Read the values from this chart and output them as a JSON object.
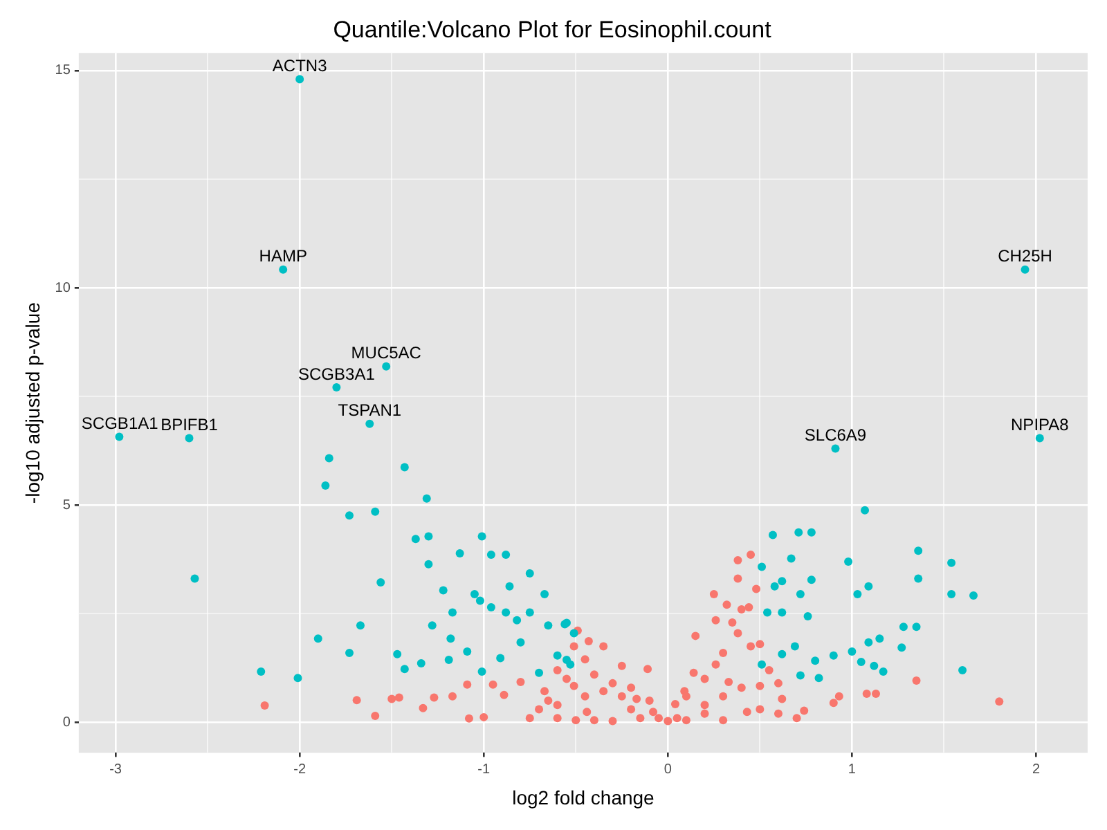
{
  "chart_data": {
    "type": "scatter",
    "title": "Quantile:Volcano Plot for Eosinophil.count",
    "xlabel": "log2 fold change",
    "ylabel": "-log10 adjusted p-value",
    "xlim": [
      -3.2,
      2.28
    ],
    "ylim": [
      -0.7,
      15.4
    ],
    "xticks": [
      -3,
      {
        "value": -2.5,
        "label": null
      },
      -2,
      {
        "value": -1.5,
        "label": null
      },
      -1,
      {
        "value": -0.5,
        "label": null
      },
      0,
      {
        "value": 0.5,
        "label": null
      },
      1,
      {
        "value": 1.5,
        "label": null
      },
      2
    ],
    "yticks": [
      0,
      {
        "value": 2.5,
        "label": null
      },
      5,
      {
        "value": 7.5,
        "label": null
      },
      10,
      {
        "value": 12.5,
        "label": null
      },
      15
    ],
    "grid": true,
    "legend": false,
    "marker": "circle",
    "series": [
      {
        "color": "#00bfc4",
        "x": [
          -2.0,
          -2.09,
          1.94,
          -1.53,
          -1.8,
          -1.62,
          -2.98,
          -2.6,
          0.91,
          2.02,
          -1.84,
          -1.43,
          -1.86,
          -1.31,
          -1.73,
          -1.59,
          -1.37,
          -1.3,
          -1.01,
          -1.13,
          -1.3,
          -2.57,
          -1.56,
          -0.96,
          -0.88,
          -0.75,
          -1.67,
          -1.9,
          -1.73,
          -1.47,
          -1.43,
          -1.34,
          -2.21,
          -2.01,
          -1.22,
          -1.17,
          -1.28,
          -1.18,
          -1.19,
          -1.05,
          -1.02,
          -0.96,
          -0.88,
          -0.86,
          -0.82,
          -0.75,
          -0.67,
          -0.65,
          -0.8,
          -0.6,
          -0.55,
          -0.91,
          -1.01,
          -0.7,
          -0.53,
          -1.09,
          -0.56,
          -0.51,
          -0.55,
          1.07,
          0.57,
          0.71,
          0.78,
          0.67,
          0.51,
          0.98,
          1.36,
          1.54,
          1.36,
          1.54,
          1.66,
          1.03,
          1.09,
          0.78,
          0.62,
          0.72,
          0.58,
          0.54,
          0.62,
          0.76,
          1.28,
          1.35,
          1.15,
          1.09,
          1.27,
          1.0,
          0.69,
          0.62,
          0.8,
          0.9,
          1.05,
          1.12,
          1.17,
          1.6,
          0.72,
          0.82,
          0.51
        ],
        "values": [
          14.8,
          10.42,
          10.42,
          8.19,
          7.71,
          6.87,
          6.57,
          6.54,
          6.3,
          6.54,
          6.08,
          5.87,
          5.45,
          5.15,
          4.76,
          4.85,
          4.22,
          4.28,
          4.28,
          3.89,
          3.64,
          3.31,
          3.22,
          3.86,
          3.86,
          3.43,
          2.23,
          1.93,
          1.6,
          1.57,
          1.23,
          1.36,
          1.17,
          1.02,
          3.04,
          2.53,
          2.23,
          1.93,
          1.44,
          2.95,
          2.8,
          2.65,
          2.53,
          3.13,
          2.35,
          2.53,
          2.95,
          2.23,
          1.84,
          1.54,
          2.29,
          1.48,
          1.17,
          1.14,
          1.33,
          1.63,
          2.26,
          2.05,
          1.44,
          4.88,
          4.31,
          4.37,
          4.37,
          3.77,
          3.58,
          3.7,
          3.95,
          3.67,
          3.31,
          2.95,
          2.92,
          2.95,
          3.13,
          3.28,
          3.25,
          2.95,
          3.13,
          2.53,
          2.53,
          2.44,
          2.2,
          2.2,
          1.93,
          1.84,
          1.72,
          1.63,
          1.75,
          1.57,
          1.42,
          1.54,
          1.39,
          1.3,
          1.17,
          1.2,
          1.08,
          1.02,
          1.33
        ]
      },
      {
        "color": "#f8766d",
        "x": [
          -2.19,
          -1.69,
          -1.59,
          -1.5,
          -1.46,
          -1.33,
          -1.27,
          -1.17,
          -1.09,
          -1.08,
          -1.0,
          -0.95,
          -0.89,
          -0.8,
          -0.67,
          1.35,
          1.8,
          1.08,
          1.13,
          0.9,
          0.93,
          0.45,
          0.38,
          0.38,
          0.48,
          0.25,
          0.32,
          0.44,
          0.15,
          0.26,
          0.38,
          0.45,
          0.14,
          0.26,
          0.33,
          0.5,
          0.62,
          0.74,
          0.04,
          0.09,
          0.0,
          0.43,
          -0.49,
          -0.43,
          -0.35,
          -0.25,
          -0.11,
          -0.51,
          -0.35,
          -0.17,
          -0.08,
          -0.44,
          -0.3,
          -0.51,
          -0.6,
          -0.55,
          -0.45,
          -0.4,
          -0.3,
          -0.2,
          -0.65,
          -0.7,
          -0.6,
          -0.5,
          -0.4,
          -0.2,
          -0.1,
          -0.05,
          0.05,
          0.1,
          0.2,
          0.3,
          0.35,
          0.4,
          0.5,
          0.55,
          0.6,
          0.2,
          0.3,
          0.1,
          0.2,
          0.3,
          0.4,
          0.5,
          0.6,
          0.7,
          -0.75,
          -0.6,
          -0.45,
          -0.25,
          -0.15
        ],
        "values": [
          0.39,
          0.51,
          0.15,
          0.54,
          0.57,
          0.33,
          0.57,
          0.6,
          0.87,
          0.09,
          0.12,
          0.87,
          0.63,
          0.93,
          0.72,
          0.96,
          0.48,
          0.66,
          0.66,
          0.45,
          0.6,
          3.86,
          3.73,
          3.31,
          3.07,
          2.95,
          2.71,
          2.65,
          1.99,
          2.35,
          2.05,
          1.75,
          1.14,
          1.33,
          0.93,
          0.84,
          0.54,
          0.27,
          0.42,
          0.72,
          0.03,
          0.24,
          2.11,
          1.87,
          1.75,
          1.3,
          1.23,
          1.75,
          0.72,
          0.54,
          0.24,
          0.24,
          0.03,
          0.84,
          1.2,
          1.0,
          1.45,
          1.1,
          0.9,
          0.8,
          0.5,
          0.3,
          0.1,
          0.05,
          0.05,
          0.3,
          0.5,
          0.1,
          0.1,
          0.6,
          1.0,
          1.6,
          2.3,
          2.6,
          1.8,
          1.2,
          0.9,
          0.2,
          0.05,
          0.05,
          0.4,
          0.6,
          0.8,
          0.3,
          0.2,
          0.1,
          0.1,
          0.4,
          0.6,
          0.6,
          0.1
        ]
      }
    ],
    "annotations": [
      {
        "text": "ACTN3",
        "x": -2.0,
        "y": 14.8
      },
      {
        "text": "HAMP",
        "x": -2.09,
        "y": 10.42
      },
      {
        "text": "CH25H",
        "x": 1.94,
        "y": 10.42
      },
      {
        "text": "MUC5AC",
        "x": -1.53,
        "y": 8.19
      },
      {
        "text": "SCGB3A1",
        "x": -1.8,
        "y": 7.71
      },
      {
        "text": "TSPAN1",
        "x": -1.62,
        "y": 6.87
      },
      {
        "text": "SCGB1A1",
        "x": -2.98,
        "y": 6.57
      },
      {
        "text": "BPIFB1",
        "x": -2.6,
        "y": 6.54
      },
      {
        "text": "SLC6A9",
        "x": 0.91,
        "y": 6.3
      },
      {
        "text": "NPIPA8",
        "x": 2.02,
        "y": 6.54
      }
    ]
  }
}
